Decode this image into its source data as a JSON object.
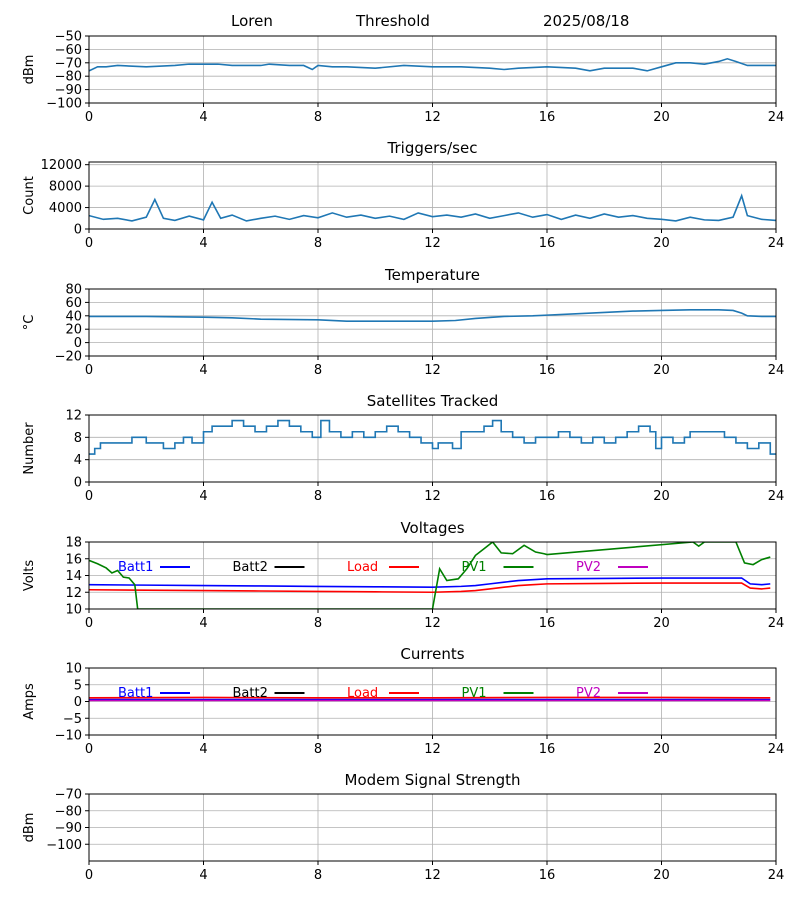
{
  "header": {
    "station": "Loren",
    "mode": "Threshold",
    "date": "2025/08/18"
  },
  "chart_data": [
    {
      "type": "line",
      "title": "",
      "ylabel": "dBm",
      "ylim": [
        -100,
        -50
      ],
      "yticks": [
        -50,
        -60,
        -70,
        -80,
        -90,
        -100
      ],
      "xlim": [
        0,
        24
      ],
      "xticks": [
        0,
        4,
        8,
        12,
        16,
        20,
        24
      ],
      "grid": true,
      "series": [
        {
          "color": "#1f77b4",
          "x": [
            0,
            0.3,
            0.6,
            1,
            2,
            3,
            3.5,
            4,
            4.5,
            5,
            6,
            6.3,
            7,
            7.5,
            7.8,
            8,
            8.5,
            9,
            10,
            11,
            12,
            13,
            14,
            14.5,
            15,
            16,
            17,
            17.5,
            18,
            19,
            19.5,
            20,
            20.5,
            21,
            21.5,
            22,
            22.3,
            22.6,
            23,
            24
          ],
          "y": [
            -76,
            -73,
            -73,
            -72,
            -73,
            -72,
            -71,
            -71,
            -71,
            -72,
            -72,
            -71,
            -72,
            -72,
            -75,
            -72,
            -73,
            -73,
            -74,
            -72,
            -73,
            -73,
            -74,
            -75,
            -74,
            -73,
            -74,
            -76,
            -74,
            -74,
            -76,
            -73,
            -70,
            -70,
            -71,
            -69,
            -67,
            -69,
            -72,
            -72
          ]
        }
      ]
    },
    {
      "type": "line",
      "title": "Triggers/sec",
      "ylabel": "Count",
      "ylim": [
        0,
        12500
      ],
      "yticks": [
        0,
        4000,
        8000,
        12000
      ],
      "xlim": [
        0,
        24
      ],
      "xticks": [
        0,
        4,
        8,
        12,
        16,
        20,
        24
      ],
      "grid": true,
      "series": [
        {
          "color": "#1f77b4",
          "x": [
            0,
            0.5,
            1,
            1.5,
            2,
            2.3,
            2.6,
            3,
            3.5,
            4,
            4.3,
            4.6,
            5,
            5.5,
            6,
            6.5,
            7,
            7.5,
            8,
            8.5,
            9,
            9.5,
            10,
            10.5,
            11,
            11.5,
            12,
            12.5,
            13,
            13.5,
            14,
            14.5,
            15,
            15.5,
            16,
            16.5,
            17,
            17.5,
            18,
            18.5,
            19,
            19.5,
            20,
            20.5,
            21,
            21.5,
            22,
            22.5,
            22.8,
            23,
            23.5,
            24
          ],
          "y": [
            2500,
            1800,
            2000,
            1500,
            2200,
            5500,
            2000,
            1600,
            2400,
            1700,
            5000,
            2000,
            2600,
            1500,
            2000,
            2400,
            1800,
            2500,
            2100,
            3000,
            2200,
            2600,
            2000,
            2400,
            1800,
            3000,
            2300,
            2600,
            2200,
            2800,
            2000,
            2500,
            3000,
            2200,
            2700,
            1800,
            2600,
            2000,
            2800,
            2200,
            2500,
            2000,
            1800,
            1500,
            2200,
            1700,
            1600,
            2200,
            6200,
            2500,
            1800,
            1600
          ]
        }
      ]
    },
    {
      "type": "line",
      "title": "Temperature",
      "ylabel": "°C",
      "ylim": [
        -20,
        80
      ],
      "yticks": [
        -20,
        0,
        20,
        40,
        60,
        80
      ],
      "xlim": [
        0,
        24
      ],
      "xticks": [
        0,
        4,
        8,
        12,
        16,
        20,
        24
      ],
      "grid": true,
      "series": [
        {
          "color": "#1f77b4",
          "x": [
            0,
            2,
            4,
            5,
            6,
            8,
            9,
            10,
            12,
            12.8,
            13.5,
            14.5,
            15.5,
            16,
            17,
            18,
            19,
            20,
            21,
            22,
            22.5,
            22.8,
            23,
            23.5,
            24
          ],
          "y": [
            39,
            39,
            38,
            37,
            35,
            34,
            32,
            32,
            32,
            33,
            36,
            39,
            40,
            41,
            43,
            45,
            47,
            48,
            49,
            49,
            48,
            44,
            40,
            39,
            39
          ]
        }
      ]
    },
    {
      "type": "line",
      "title": "Satellites Tracked",
      "ylabel": "Number",
      "ylim": [
        0,
        12
      ],
      "yticks": [
        0,
        4,
        8,
        12
      ],
      "xlim": [
        0,
        24
      ],
      "xticks": [
        0,
        4,
        8,
        12,
        16,
        20,
        24
      ],
      "grid": true,
      "step": true,
      "series": [
        {
          "color": "#1f77b4",
          "x": [
            0,
            0.2,
            0.4,
            0.8,
            1.5,
            2,
            2.6,
            3,
            3.3,
            3.6,
            4,
            4.3,
            4.7,
            5,
            5.4,
            5.8,
            6.2,
            6.6,
            7,
            7.4,
            7.8,
            8.1,
            8.4,
            8.8,
            9.2,
            9.6,
            10,
            10.4,
            10.8,
            11.2,
            11.6,
            12,
            12.2,
            12.7,
            13,
            13.4,
            13.8,
            14.1,
            14.4,
            14.8,
            15.2,
            15.6,
            16,
            16.4,
            16.8,
            17.2,
            17.6,
            18,
            18.4,
            18.8,
            19.2,
            19.6,
            19.8,
            20,
            20.4,
            20.8,
            21,
            21.4,
            21.8,
            22.2,
            22.6,
            23,
            23.4,
            23.8,
            24
          ],
          "y": [
            5,
            6,
            7,
            7,
            8,
            7,
            6,
            7,
            8,
            7,
            9,
            10,
            10,
            11,
            10,
            9,
            10,
            11,
            10,
            9,
            8,
            11,
            9,
            8,
            9,
            8,
            9,
            10,
            9,
            8,
            7,
            6,
            7,
            6,
            9,
            9,
            10,
            11,
            9,
            8,
            7,
            8,
            8,
            9,
            8,
            7,
            8,
            7,
            8,
            9,
            10,
            9,
            6,
            8,
            7,
            8,
            9,
            9,
            9,
            8,
            7,
            6,
            7,
            5,
            5
          ]
        }
      ]
    },
    {
      "type": "line",
      "title": "Voltages",
      "ylabel": "Volts",
      "ylim": [
        10,
        18
      ],
      "yticks": [
        10,
        12,
        14,
        16,
        18
      ],
      "xlim": [
        0,
        24
      ],
      "xticks": [
        0,
        4,
        8,
        12,
        16,
        20,
        24
      ],
      "grid": true,
      "series": [
        {
          "name": "Batt1",
          "color": "#0000ff",
          "x": [
            0,
            2,
            4,
            6,
            8,
            10,
            12,
            13,
            13.5,
            14,
            14.5,
            15,
            15.5,
            16,
            18,
            20,
            22,
            22.8,
            23.1,
            23.5,
            23.8
          ],
          "y": [
            12.9,
            12.85,
            12.8,
            12.75,
            12.7,
            12.65,
            12.6,
            12.7,
            12.8,
            13.0,
            13.2,
            13.4,
            13.5,
            13.6,
            13.65,
            13.7,
            13.7,
            13.7,
            13.0,
            12.9,
            13.0
          ]
        },
        {
          "name": "Batt2",
          "color": "#000000",
          "x": [],
          "y": []
        },
        {
          "name": "Load",
          "color": "#ff0000",
          "x": [
            0,
            2,
            4,
            6,
            8,
            10,
            12,
            13,
            13.5,
            14,
            14.5,
            15,
            15.5,
            16,
            18,
            20,
            22,
            22.8,
            23.1,
            23.5,
            23.8
          ],
          "y": [
            12.3,
            12.25,
            12.2,
            12.15,
            12.1,
            12.05,
            12.0,
            12.1,
            12.2,
            12.4,
            12.6,
            12.8,
            12.9,
            13.0,
            13.05,
            13.1,
            13.1,
            13.1,
            12.5,
            12.4,
            12.5
          ]
        },
        {
          "name": "PV1",
          "color": "#008000",
          "x": [
            0,
            0.3,
            0.6,
            0.8,
            1.0,
            1.2,
            1.4,
            1.6,
            1.7,
            12.0,
            12.25,
            12.5,
            12.9,
            13.2,
            13.5,
            13.8,
            14.1,
            14.4,
            14.8,
            15.2,
            15.6,
            15.9,
            16.0,
            21.1,
            21.3,
            21.5,
            22.6,
            22.9,
            23.2,
            23.5,
            23.8
          ],
          "y": [
            15.8,
            15.4,
            14.9,
            14.3,
            14.6,
            13.8,
            13.7,
            12.9,
            10,
            10,
            14.8,
            13.4,
            13.6,
            14.8,
            16.4,
            17.2,
            18,
            16.7,
            16.6,
            17.6,
            16.8,
            16.6,
            16.5,
            18,
            17.5,
            18,
            18,
            15.5,
            15.3,
            15.9,
            16.2
          ]
        },
        {
          "name": "PV2",
          "color": "#bf00bf",
          "x": [],
          "y": []
        }
      ]
    },
    {
      "type": "line",
      "title": "Currents",
      "ylabel": "Amps",
      "ylim": [
        -10,
        10
      ],
      "yticks": [
        -10,
        -5,
        0,
        5,
        10
      ],
      "xlim": [
        0,
        24
      ],
      "xticks": [
        0,
        4,
        8,
        12,
        16,
        20,
        24
      ],
      "grid": true,
      "series": [
        {
          "name": "Batt1",
          "color": "#0000ff",
          "x": [
            0,
            23.8
          ],
          "y": [
            0.6,
            0.6
          ]
        },
        {
          "name": "Batt2",
          "color": "#000000",
          "x": [],
          "y": []
        },
        {
          "name": "Load",
          "color": "#ff0000",
          "x": [
            0,
            4,
            8,
            12,
            16,
            20,
            23.8
          ],
          "y": [
            1.1,
            1.2,
            1.1,
            1.1,
            1.2,
            1.2,
            1.1
          ]
        },
        {
          "name": "PV1",
          "color": "#008000",
          "x": [],
          "y": []
        },
        {
          "name": "PV2",
          "color": "#bf00bf",
          "x": [
            0,
            23.8
          ],
          "y": [
            0.3,
            0.3
          ]
        }
      ]
    },
    {
      "type": "line",
      "title": "Modem Signal Strength",
      "ylabel": "dBm",
      "ylim": [
        -110,
        -70
      ],
      "yticks": [
        -70,
        -80,
        -90,
        -100
      ],
      "xlim": [
        0,
        24
      ],
      "xticks": [
        0,
        4,
        8,
        12,
        16,
        20,
        24
      ],
      "grid": true,
      "series": []
    }
  ]
}
